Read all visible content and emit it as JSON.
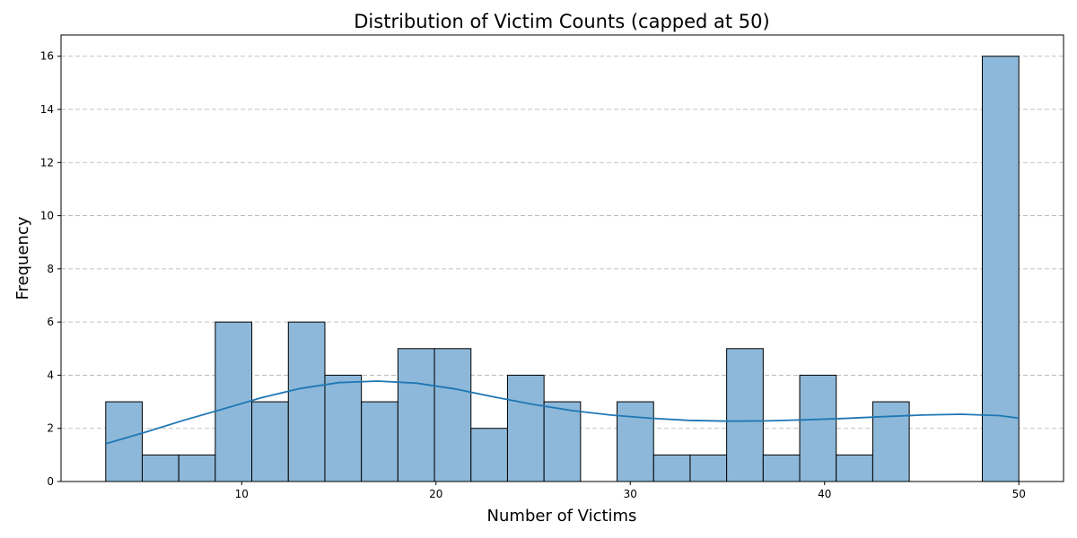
{
  "chart_data": {
    "type": "bar",
    "title": "Distribution of Victim Counts (capped at 50)",
    "xlabel": "Number of Victims",
    "ylabel": "Frequency",
    "bin_start": 3,
    "bin_width": 1.88,
    "counts": [
      3,
      1,
      1,
      6,
      3,
      6,
      4,
      3,
      5,
      5,
      2,
      4,
      3,
      0,
      3,
      1,
      1,
      5,
      1,
      4,
      1,
      3,
      0,
      0,
      16
    ],
    "kde": [
      [
        3,
        1.42
      ],
      [
        5,
        1.85
      ],
      [
        7,
        2.3
      ],
      [
        9,
        2.72
      ],
      [
        11,
        3.15
      ],
      [
        13,
        3.5
      ],
      [
        15,
        3.72
      ],
      [
        17,
        3.78
      ],
      [
        19,
        3.7
      ],
      [
        21,
        3.48
      ],
      [
        23,
        3.18
      ],
      [
        25,
        2.9
      ],
      [
        27,
        2.67
      ],
      [
        29,
        2.5
      ],
      [
        31,
        2.38
      ],
      [
        33,
        2.3
      ],
      [
        35,
        2.27
      ],
      [
        37,
        2.28
      ],
      [
        39,
        2.32
      ],
      [
        41,
        2.37
      ],
      [
        43,
        2.44
      ],
      [
        45,
        2.5
      ],
      [
        47,
        2.53
      ],
      [
        49,
        2.48
      ],
      [
        50,
        2.38
      ]
    ],
    "xticks": [
      10,
      20,
      30,
      40,
      50
    ],
    "yticks": [
      0,
      2,
      4,
      6,
      8,
      10,
      12,
      14,
      16
    ],
    "xlim": [
      0.7,
      52.3
    ],
    "ylim": [
      0,
      16.8
    ],
    "grid": "y-dashed",
    "bar_color": "#8db8d9",
    "bar_edge_color": "#000000",
    "kde_color": "#1f77b4"
  }
}
